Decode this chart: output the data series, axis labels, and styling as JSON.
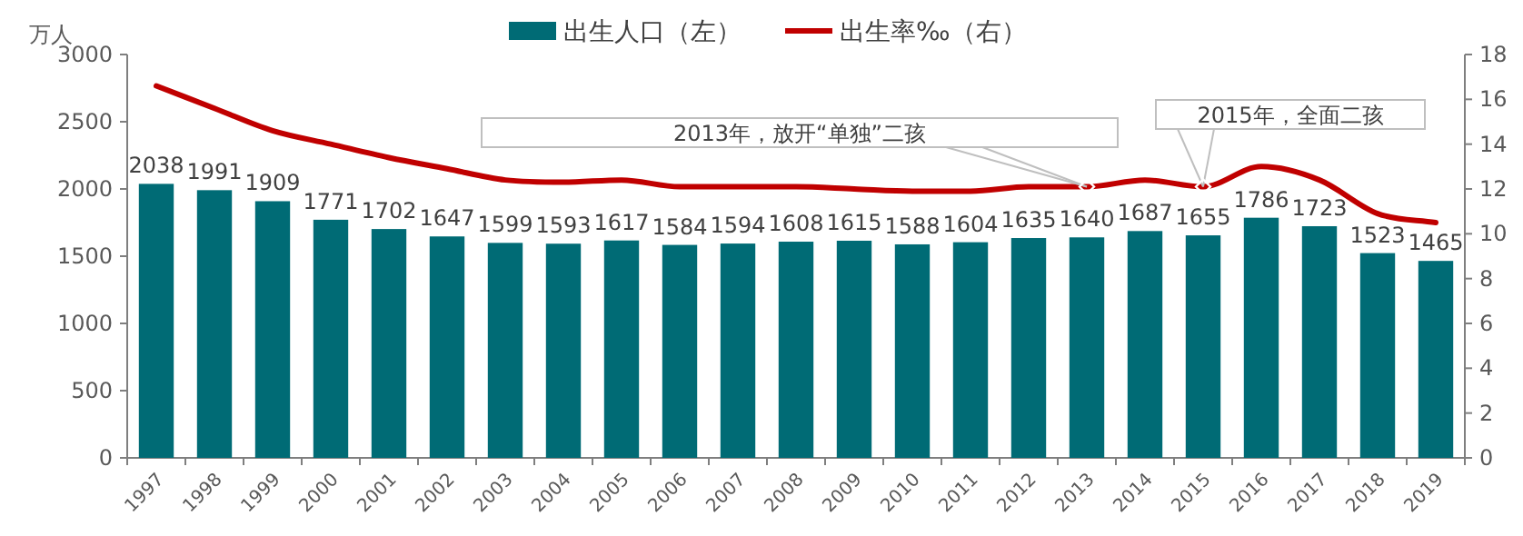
{
  "chart_data": {
    "type": "bar",
    "ylabel": "万人",
    "categories": [
      "1997",
      "1998",
      "1999",
      "2000",
      "2001",
      "2002",
      "2003",
      "2004",
      "2005",
      "2006",
      "2007",
      "2008",
      "2009",
      "2010",
      "2011",
      "2012",
      "2013",
      "2014",
      "2015",
      "2016",
      "2017",
      "2018",
      "2019"
    ],
    "series": [
      {
        "name": "出生人口（左）",
        "color": "#006b75",
        "values": [
          2038,
          1991,
          1909,
          1771,
          1702,
          1647,
          1599,
          1593,
          1617,
          1584,
          1594,
          1608,
          1615,
          1588,
          1604,
          1635,
          1640,
          1687,
          1655,
          1786,
          1723,
          1523,
          1465
        ],
        "value_labels": [
          "2038",
          "1991",
          "1909",
          "1771",
          "1702",
          "1647",
          "1599",
          "1593",
          "1617",
          "1584",
          "1594",
          "1608",
          "1615",
          "1588",
          "1604",
          "1635",
          "1640",
          "1687",
          "1655",
          "1786",
          "1723",
          "1523",
          "1465"
        ]
      },
      {
        "name": "出生率‰（右）",
        "type": "line",
        "axis": "y2",
        "color": "#c00000",
        "values": [
          16.6,
          15.6,
          14.6,
          14.0,
          13.4,
          12.9,
          12.4,
          12.3,
          12.4,
          12.1,
          12.1,
          12.1,
          12.0,
          11.9,
          11.9,
          12.1,
          12.1,
          12.4,
          12.1,
          13.0,
          12.4,
          10.9,
          10.5
        ]
      }
    ],
    "ylim": [
      0,
      3000
    ],
    "yticks": [
      0,
      500,
      1000,
      1500,
      2000,
      2500,
      3000
    ],
    "y2lim": [
      0,
      18
    ],
    "y2ticks": [
      0,
      2,
      4,
      6,
      8,
      10,
      12,
      14,
      16,
      18
    ],
    "legend": "top",
    "marker": "none",
    "annotations": [
      {
        "text": "2013年，放开“单独”二孩",
        "x": "2013",
        "y": 2017
      },
      {
        "text": "2015年，全面二孩",
        "x": "2015",
        "y": 2017
      }
    ]
  }
}
